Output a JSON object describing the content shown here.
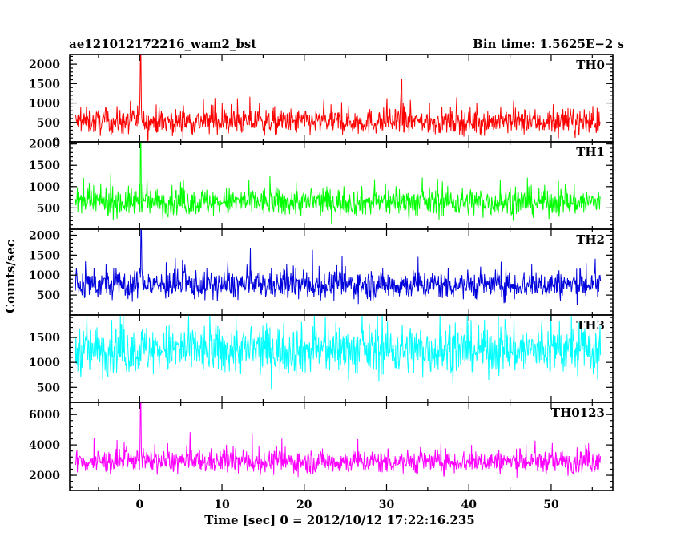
{
  "header": {
    "title": "ae121012172216_wam2_bst",
    "bin_time": "Bin time: 1.5625E−2 s"
  },
  "chart_data": {
    "type": "line",
    "title": "ae121012172216_wam2_bst",
    "xlabel": "Time [sec] 0 = 2012/10/12 17:22:16.235",
    "ylabel": "Counts/sec",
    "xlim": [
      -8.5,
      57.5
    ],
    "data_range": [
      -7.8,
      56.0
    ],
    "x_ticks": [
      "0",
      "10",
      "20",
      "30",
      "40",
      "50"
    ],
    "grid": false,
    "panels": [
      {
        "name": "TH0",
        "color": "#ff0000",
        "ylim": [
          0,
          2250
        ],
        "y_ticks": [
          "0",
          "500",
          "1000",
          "1500",
          "2000"
        ],
        "baseline_mean": 520,
        "spread": 300,
        "peaks": [
          {
            "x": 0.1,
            "y": 2250
          },
          {
            "x": 31.8,
            "y": 1600
          }
        ]
      },
      {
        "name": "TH1",
        "color": "#00ff00",
        "ylim": [
          0,
          2050
        ],
        "y_ticks": [
          "500",
          "1000",
          "1500",
          "2000"
        ],
        "baseline_mean": 640,
        "spread": 300,
        "peaks": [
          {
            "x": 0.1,
            "y": 2050
          }
        ]
      },
      {
        "name": "TH2",
        "color": "#0000dd",
        "ylim": [
          0,
          2150
        ],
        "y_ticks": [
          "500",
          "1000",
          "1500",
          "2000"
        ],
        "baseline_mean": 760,
        "spread": 330,
        "peaks": [
          {
            "x": 0.2,
            "y": 2150
          }
        ]
      },
      {
        "name": "TH3",
        "color": "#00ffff",
        "ylim": [
          200,
          1950
        ],
        "y_ticks": [
          "500",
          "1000",
          "1500"
        ],
        "baseline_mean": 1250,
        "spread": 450,
        "peaks": []
      },
      {
        "name": "TH0123",
        "color": "#ff00ff",
        "ylim": [
          1000,
          6800
        ],
        "y_ticks": [
          "2000",
          "4000",
          "6000"
        ],
        "baseline_mean": 2900,
        "spread": 700,
        "peaks": [
          {
            "x": 0.1,
            "y": 6800
          }
        ]
      }
    ]
  }
}
